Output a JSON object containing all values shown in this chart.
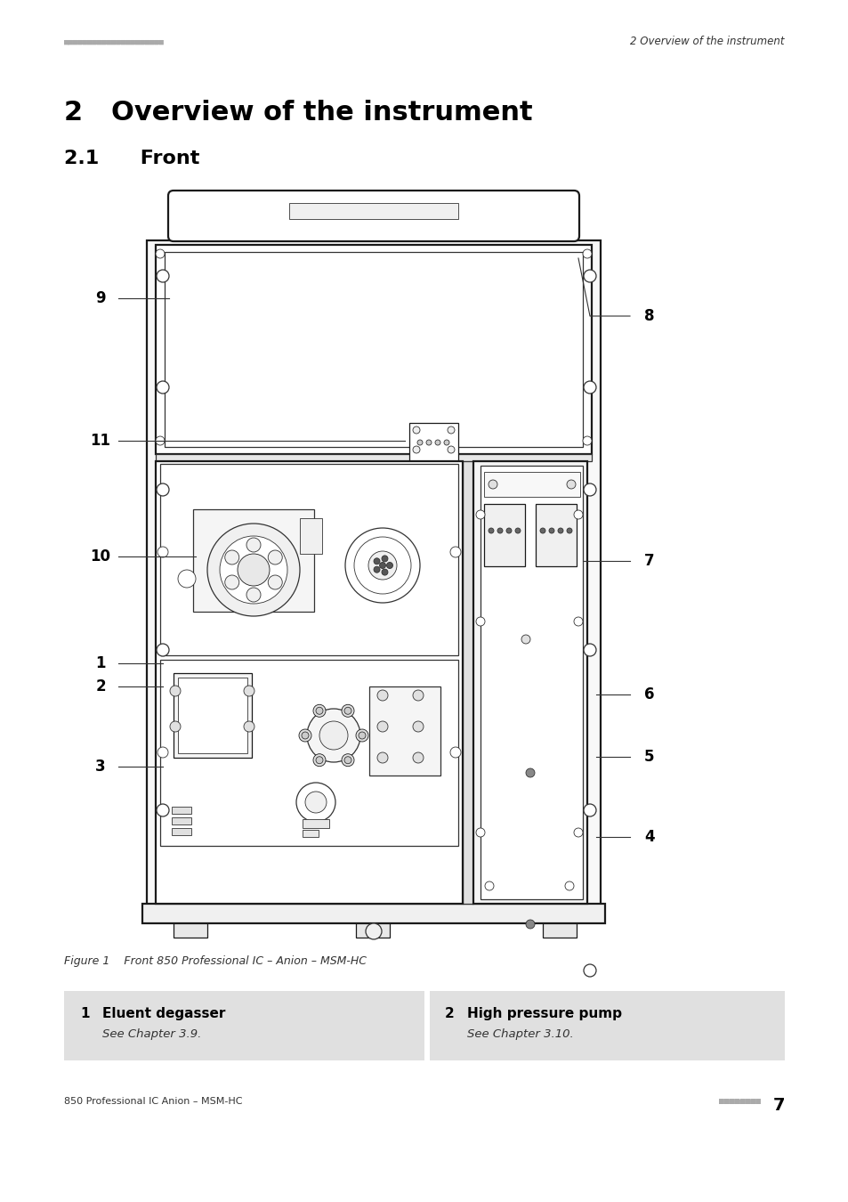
{
  "page_title": "2   Overview of the instrument",
  "section_title": "2.1      Front",
  "header_dots": "■■■■■■■■■■■■■■■■■■■■■",
  "header_right": "2 Overview of the instrument",
  "footer_left": "850 Professional IC Anion – MSM-HC",
  "footer_dots": "■■■■■■■■",
  "footer_page": "7",
  "figure_caption": "Figure 1    Front 850 Professional IC – Anion – MSM-HC",
  "table_items": [
    {
      "num": "1",
      "bold": "Eluent degasser",
      "italic": "See Chapter 3.9."
    },
    {
      "num": "2",
      "bold": "High pressure pump",
      "italic": "See Chapter 3.10."
    }
  ],
  "bg_color": "#ffffff",
  "table_bg": "#e0e0e0",
  "dot_color": "#aaaaaa",
  "line_color": "#000000",
  "lw_main": 1.5,
  "lw_inner": 0.8
}
